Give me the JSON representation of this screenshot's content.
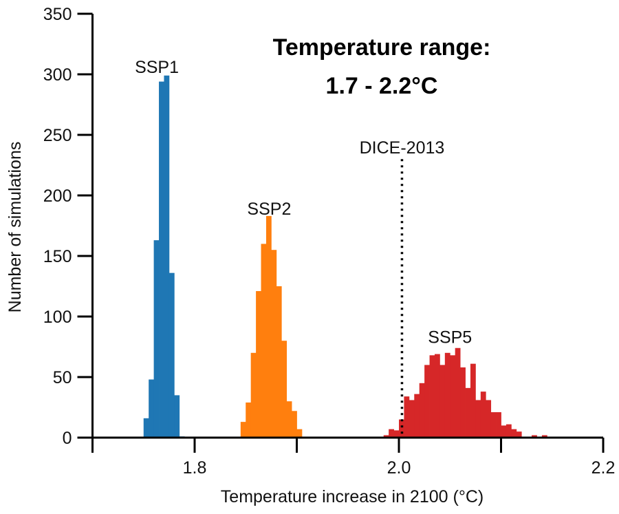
{
  "chart_data": {
    "type": "bar",
    "subtype": "histogram",
    "title": "Temperature range:",
    "subtitle": "1.7 - 2.2°C",
    "xlabel": "Temperature increase in 2100 (°C)",
    "ylabel": "Number of simulations",
    "xlim": [
      1.7,
      2.2
    ],
    "ylim": [
      0,
      350
    ],
    "xticks": [
      1.7,
      1.8,
      1.9,
      2.0,
      2.1,
      2.2
    ],
    "xtick_labels": {
      "1.8": "1.8",
      "2.0": "2.0",
      "2.2": "2.2"
    },
    "yticks": [
      0,
      50,
      100,
      150,
      200,
      250,
      300,
      350
    ],
    "ytick_labels": [
      "0",
      "50",
      "100",
      "150",
      "200",
      "250",
      "300",
      "350"
    ],
    "bin_width": 0.005,
    "grid": false,
    "series": [
      {
        "name": "SSP1",
        "color": "#1f77b4",
        "label_at": [
          1.763,
          300
        ],
        "bin_start": [
          1.75,
          1.755,
          1.76,
          1.765,
          1.77,
          1.775,
          1.78,
          1.785
        ],
        "values": [
          16,
          48,
          163,
          294,
          299,
          136,
          35,
          1
        ]
      },
      {
        "name": "SSP2",
        "color": "#ff7f0e",
        "label_at": [
          1.873,
          183
        ],
        "bin_start": [
          1.845,
          1.85,
          1.855,
          1.86,
          1.865,
          1.87,
          1.875,
          1.88,
          1.885,
          1.89,
          1.895,
          1.9
        ],
        "values": [
          13,
          29,
          70,
          121,
          160,
          183,
          155,
          125,
          80,
          30,
          22,
          7
        ]
      },
      {
        "name": "SSP5",
        "color": "#d62728",
        "label_at": [
          2.05,
          77
        ],
        "bin_start": [
          1.985,
          1.99,
          1.995,
          2.0,
          2.005,
          2.01,
          2.015,
          2.02,
          2.025,
          2.03,
          2.035,
          2.04,
          2.045,
          2.05,
          2.055,
          2.06,
          2.065,
          2.07,
          2.075,
          2.08,
          2.085,
          2.09,
          2.095,
          2.1,
          2.105,
          2.11,
          2.115,
          2.12,
          2.125,
          2.13,
          2.135,
          2.14
        ],
        "values": [
          2,
          7,
          6,
          15,
          34,
          31,
          36,
          45,
          60,
          68,
          69,
          60,
          70,
          68,
          74,
          58,
          41,
          61,
          31,
          38,
          31,
          21,
          21,
          10,
          11,
          7,
          5,
          0,
          0,
          2,
          0,
          2
        ]
      }
    ],
    "annotations": [
      {
        "name": "DICE-2013",
        "type": "vline",
        "x": 2.003,
        "y_top": 230,
        "style": "dotted",
        "color": "#000000"
      }
    ]
  }
}
